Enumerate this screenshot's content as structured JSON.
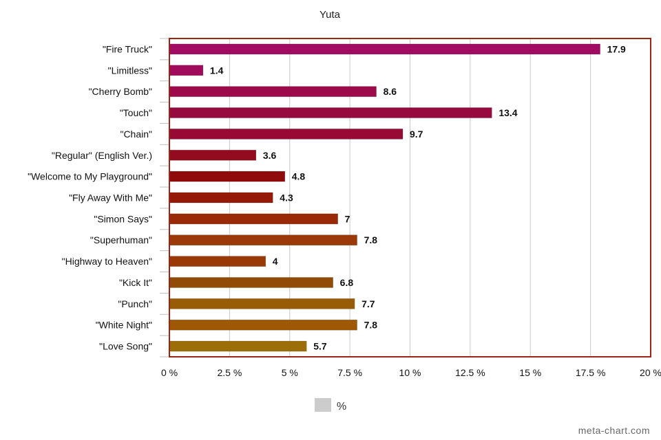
{
  "chart_data": {
    "type": "bar",
    "orientation": "horizontal",
    "title": "Yuta",
    "categories": [
      "\"Fire Truck\"",
      "\"Limitless\"",
      "\"Cherry Bomb\"",
      "\"Touch\"",
      "\"Chain\"",
      "\"Regular\" (English Ver.)",
      "\"Welcome to My Playground\"",
      "\"Fly Away With Me\"",
      "\"Simon Says\"",
      "\"Superhuman\"",
      "\"Highway to Heaven\"",
      "\"Kick It\"",
      "\"Punch\"",
      "\"White Night\"",
      "\"Love Song\""
    ],
    "series": [
      {
        "name": "%",
        "values": [
          17.9,
          1.4,
          8.6,
          13.4,
          9.7,
          3.6,
          4.8,
          4.3,
          7,
          7.8,
          4,
          6.8,
          7.7,
          7.8,
          5.7
        ],
        "value_labels": [
          "17.9",
          "1.4",
          "8.6",
          "13.4",
          "9.7",
          "3.6",
          "4.8",
          "4.3",
          "7",
          "7.8",
          "4",
          "6.8",
          "7.7",
          "7.8",
          "5.7"
        ]
      }
    ],
    "bar_colors": [
      "#a10b62",
      "#a10b5b",
      "#9c0a4b",
      "#970a40",
      "#960a33",
      "#930b1e",
      "#8f0b0b",
      "#951a07",
      "#9a2a07",
      "#9c3908",
      "#993a06",
      "#904c07",
      "#985c07",
      "#9e5806",
      "#9c6e08"
    ],
    "xlim": [
      0,
      20
    ],
    "xticks": [
      0,
      2.5,
      5,
      7.5,
      10,
      12.5,
      15,
      17.5,
      20
    ],
    "xtick_labels": [
      "0 %",
      "2.5 %",
      "5 %",
      "7.5 %",
      "10 %",
      "12.5 %",
      "15 %",
      "17.5 %",
      "20 %"
    ],
    "grid": true,
    "legend": {
      "position": "bottom",
      "label": "%",
      "swatch_color": "#cccccc"
    },
    "frame_color": "#9b2414",
    "grid_color": "#c8c8c8",
    "watermark": "meta-chart.com"
  }
}
